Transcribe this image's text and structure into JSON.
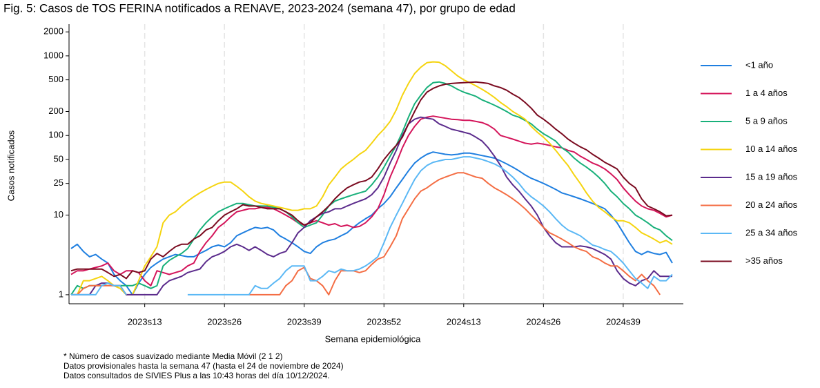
{
  "chart_data": {
    "type": "line",
    "title": "Fig. 5:  Casos de TOS FERINA notificados a RENAVE, 2023-2024 (semana 47), por grupo de edad",
    "xlabel": "Semana epidemiológica",
    "ylabel": "Casos notificados",
    "notes": [
      "* Número de casos suavizado mediante Media Móvil (2 1 2)",
      "Datos provisionales hasta la semana 47 (hasta el 24 de noviembre de 2024)",
      "Datos consultados de SIVIES Plus a las 10:43 horas del día 10/12/2024."
    ],
    "log_scale": true,
    "grid": "x",
    "legend": "right",
    "ylim": [
      0.77,
      2500
    ],
    "yticks": [
      1,
      10,
      25,
      50,
      100,
      200,
      500,
      1000,
      2000
    ],
    "categories": [
      null,
      null,
      null,
      null,
      null,
      null,
      null,
      null,
      null,
      null,
      null,
      null,
      "2023s13",
      null,
      null,
      null,
      null,
      null,
      null,
      null,
      null,
      null,
      null,
      null,
      null,
      "2023s26",
      null,
      null,
      null,
      null,
      null,
      null,
      null,
      null,
      null,
      null,
      null,
      null,
      "2023s39",
      null,
      null,
      null,
      null,
      null,
      null,
      null,
      null,
      null,
      null,
      null,
      null,
      "2023s52",
      null,
      null,
      null,
      null,
      null,
      null,
      null,
      null,
      null,
      null,
      null,
      null,
      "2024s13",
      null,
      null,
      null,
      null,
      null,
      null,
      null,
      null,
      null,
      null,
      null,
      null,
      "2024s26",
      null,
      null,
      null,
      null,
      null,
      null,
      null,
      null,
      null,
      null,
      null,
      null,
      "2024s39",
      null,
      null,
      null,
      null,
      null,
      null,
      null,
      null
    ],
    "series": [
      {
        "name": "<1 año",
        "color": "#1f7fe0",
        "values": [
          3.8,
          4.3,
          3.5,
          3.0,
          3.2,
          2.8,
          2.5,
          1.8,
          1.5,
          1.3,
          1.0,
          1.4,
          1.8,
          2.2,
          2.5,
          2.8,
          3.0,
          3.2,
          3.1,
          3.0,
          3.0,
          3.3,
          3.6,
          4.0,
          4.2,
          4.0,
          4.5,
          5.5,
          6.0,
          6.5,
          7.0,
          6.8,
          7.0,
          6.5,
          5.5,
          5.0,
          4.5,
          4.0,
          3.5,
          3.3,
          4.0,
          4.5,
          4.8,
          5.0,
          5.5,
          6.0,
          7.0,
          8.0,
          9.0,
          10,
          12,
          14,
          17,
          22,
          28,
          36,
          45,
          52,
          58,
          62,
          60,
          58,
          57,
          58,
          60,
          60,
          58,
          56,
          54,
          52,
          48,
          44,
          40,
          36,
          32,
          29,
          27,
          25,
          23,
          21,
          19,
          18,
          17,
          16,
          15,
          14,
          13,
          12,
          10,
          8,
          6,
          4.5,
          3.5,
          3.2,
          3.5,
          3.3,
          3.2,
          3.4,
          2.5
        ]
      },
      {
        "name": "1 a 4 años",
        "color": "#d4145a",
        "values": [
          1.8,
          2.0,
          2.0,
          2.1,
          2.2,
          2.3,
          2.5,
          2.0,
          1.8,
          2.0,
          2.0,
          1.9,
          1.5,
          1.3,
          2.0,
          1.9,
          1.8,
          1.9,
          2.0,
          2.3,
          2.5,
          3.5,
          4.5,
          5.5,
          7,
          8,
          9.5,
          11,
          11.5,
          12,
          12,
          12.5,
          12.5,
          12,
          11,
          10,
          9,
          8,
          7.5,
          8,
          8.5,
          8,
          7.5,
          7.8,
          7.2,
          7.5,
          7,
          7.2,
          8,
          9.5,
          12,
          18,
          30,
          45,
          70,
          100,
          130,
          160,
          170,
          175,
          170,
          165,
          160,
          158,
          155,
          155,
          150,
          145,
          135,
          120,
          100,
          95,
          90,
          85,
          80,
          78,
          80,
          78,
          75,
          72,
          70,
          65,
          62,
          55,
          50,
          45,
          42,
          38,
          33,
          28,
          22,
          18,
          15,
          13,
          12,
          11.5,
          10.5,
          9.5,
          10
        ]
      },
      {
        "name": "5 a 9 años",
        "color": "#18b07a",
        "values": [
          1.0,
          1.3,
          1.2,
          1.3,
          1.3,
          1.3,
          1.4,
          1.3,
          1.3,
          1.3,
          1.3,
          1.4,
          1.3,
          1.2,
          1.3,
          2.3,
          2.7,
          3.0,
          3.3,
          3.8,
          5,
          6.5,
          8,
          9.5,
          11,
          12,
          13,
          14,
          14,
          13.5,
          13,
          13,
          13,
          12.5,
          12,
          11,
          9.5,
          8,
          7,
          7.5,
          8,
          10,
          13,
          15,
          16,
          17,
          18,
          19,
          20,
          24,
          30,
          40,
          55,
          75,
          110,
          170,
          250,
          320,
          400,
          460,
          470,
          450,
          420,
          380,
          350,
          330,
          310,
          280,
          260,
          240,
          220,
          200,
          180,
          170,
          155,
          140,
          120,
          105,
          95,
          85,
          70,
          62,
          52,
          45,
          40,
          35,
          30,
          25,
          20,
          17,
          14,
          12,
          10,
          9,
          8,
          7,
          6.5,
          5.5,
          4.8
        ]
      },
      {
        "name": "10 a 14 años",
        "color": "#f5d40f",
        "values": [
          1.0,
          1.0,
          1.5,
          1.5,
          1.6,
          1.7,
          1.5,
          1.3,
          1.2,
          1.0,
          1.0,
          1.5,
          2.3,
          3.0,
          4.0,
          8.0,
          10,
          11,
          13,
          15,
          17,
          19,
          21,
          23,
          25,
          26,
          26,
          23,
          20,
          17,
          15,
          14,
          13.5,
          13,
          12.5,
          12,
          11.5,
          11.5,
          12,
          12,
          13,
          17,
          24,
          30,
          38,
          44,
          50,
          58,
          65,
          80,
          100,
          120,
          150,
          210,
          320,
          450,
          600,
          720,
          820,
          840,
          830,
          750,
          650,
          560,
          500,
          460,
          420,
          380,
          340,
          300,
          260,
          230,
          200,
          180,
          160,
          130,
          110,
          95,
          80,
          65,
          52,
          42,
          32,
          25,
          19,
          15,
          12.5,
          11,
          9.5,
          8.5,
          8.5,
          8,
          7,
          6,
          5.5,
          5,
          4.5,
          4.8,
          4.3
        ]
      },
      {
        "name": "15 a 19 años",
        "color": "#5b2b8c",
        "values": [
          1,
          1,
          1,
          1,
          1.3,
          1.4,
          1.4,
          1.3,
          1.3,
          1,
          1,
          1,
          1,
          1,
          1,
          1.3,
          1.5,
          1.6,
          1.7,
          1.9,
          2,
          2.1,
          2.6,
          3.0,
          3.2,
          3.5,
          4.0,
          4.3,
          4.0,
          3.6,
          4.0,
          3.6,
          3.2,
          3.0,
          3.3,
          3.5,
          4.5,
          6,
          7,
          8.5,
          9.5,
          10.5,
          11,
          12,
          12,
          13,
          14,
          15,
          16,
          18,
          22,
          30,
          45,
          65,
          100,
          140,
          160,
          170,
          165,
          160,
          140,
          130,
          120,
          115,
          110,
          105,
          95,
          85,
          70,
          55,
          42,
          30,
          24,
          20,
          16,
          13,
          10,
          7,
          5.5,
          4.5,
          4,
          4,
          4,
          4.1,
          4,
          3.8,
          3.5,
          3.2,
          2.8,
          2,
          1.6,
          1.4,
          1.3,
          1.5,
          1.6,
          2.0,
          1.7,
          1.7,
          1.7
        ]
      },
      {
        "name": "20 a 24 años",
        "color": "#f46d43",
        "values": [
          1,
          1,
          1.2,
          1.3,
          1.3,
          1.3,
          1.3,
          1.3,
          1.3,
          1.0,
          null,
          null,
          null,
          null,
          null,
          null,
          null,
          null,
          null,
          null,
          null,
          null,
          null,
          null,
          null,
          null,
          null,
          null,
          null,
          1,
          1,
          1,
          1,
          1,
          1,
          1.3,
          1.5,
          2.0,
          2.2,
          1.6,
          1.5,
          1.3,
          1.0,
          1.5,
          2.0,
          2.0,
          2.0,
          1.9,
          2.0,
          2.4,
          2.8,
          3.0,
          4.0,
          5.5,
          9,
          12,
          16,
          20,
          22,
          25,
          28,
          30,
          32,
          34,
          34,
          32,
          30,
          29,
          25,
          22,
          20,
          18,
          16,
          14,
          12,
          10,
          8.5,
          7,
          6,
          5.5,
          5,
          4.5,
          4,
          3.7,
          3.5,
          3,
          2.8,
          2.5,
          2.3,
          2.3,
          2.0,
          1.7,
          1.5,
          1.8,
          1.5,
          1.3,
          1.0,
          null,
          null
        ]
      },
      {
        "name": "25 a 34 años",
        "color": "#5bb8f5",
        "values": [
          1,
          1,
          1,
          1,
          1,
          1.3,
          1.4,
          1.3,
          1.3,
          1.0,
          null,
          null,
          null,
          null,
          null,
          null,
          null,
          null,
          null,
          1,
          1,
          1,
          1,
          1,
          1,
          1,
          1,
          1,
          1,
          1,
          1.3,
          1.2,
          1.2,
          1.4,
          1.6,
          2.0,
          2.3,
          2.3,
          2.3,
          1.5,
          1.5,
          1.7,
          2.0,
          1.9,
          2.1,
          2.0,
          2.0,
          2.1,
          2.3,
          2.6,
          3.0,
          4.5,
          7,
          10,
          14,
          20,
          28,
          36,
          42,
          46,
          48,
          50,
          50,
          52,
          54,
          54,
          52,
          50,
          47,
          44,
          40,
          35,
          30,
          25,
          20,
          17,
          15,
          13,
          11,
          9,
          7.5,
          6.5,
          6,
          5.5,
          4.8,
          4.2,
          4,
          3.7,
          3.5,
          3.0,
          2.5,
          2.0,
          1.6,
          1.4,
          1.2,
          1.7,
          1.5,
          1.5,
          1.8
        ]
      },
      {
        "name": ">35 años",
        "color": "#7a0a1f",
        "values": [
          2.0,
          2.1,
          2.1,
          2.1,
          2.1,
          2.1,
          1.9,
          1.7,
          1.8,
          1.6,
          2.0,
          1.9,
          2.0,
          2.8,
          3.3,
          3.0,
          3.5,
          4.0,
          4.3,
          4.3,
          5.0,
          5.5,
          6.5,
          7.0,
          8.5,
          10,
          11,
          12,
          13.5,
          13,
          13,
          12.5,
          12,
          12,
          12,
          11,
          10,
          8.5,
          7.5,
          8,
          9.5,
          11,
          13,
          16,
          19,
          22,
          24,
          26,
          27,
          30,
          38,
          50,
          62,
          75,
          95,
          140,
          200,
          280,
          350,
          390,
          420,
          440,
          450,
          455,
          460,
          465,
          470,
          460,
          450,
          420,
          400,
          370,
          330,
          300,
          260,
          220,
          180,
          160,
          140,
          120,
          105,
          90,
          80,
          72,
          66,
          58,
          52,
          46,
          42,
          38,
          30,
          25,
          22,
          16,
          13,
          12,
          11,
          9.8,
          10
        ]
      }
    ]
  }
}
